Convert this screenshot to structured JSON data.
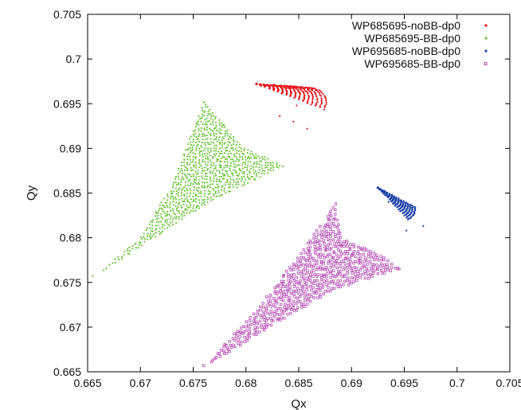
{
  "chart_data": {
    "type": "scatter",
    "title": "",
    "xlabel": "Qx",
    "ylabel": "Qy",
    "xlim": [
      0.665,
      0.705
    ],
    "ylim": [
      0.665,
      0.705
    ],
    "xticks": [
      "0.665",
      "0.67",
      "0.675",
      "0.68",
      "0.685",
      "0.69",
      "0.695",
      "0.7",
      "0.705"
    ],
    "yticks": [
      "0.665",
      "0.67",
      "0.675",
      "0.68",
      "0.685",
      "0.69",
      "0.695",
      "0.7",
      "0.705"
    ],
    "grid": false,
    "legend_position": "top-right",
    "series": [
      {
        "name": "WP685695-noBB-dp0",
        "color": "#e8141b",
        "marker": "dot",
        "footprint": {
          "tip": [
            0.681,
            0.6972
          ],
          "arc_center": [
            0.686,
            0.6952
          ],
          "arc_radius": 0.0029,
          "arc_from_deg": -30,
          "arc_to_deg": 90
        },
        "approx_points": [
          [
            0.681,
            0.6972
          ],
          [
            0.6848,
            0.6948
          ],
          [
            0.6858,
            0.6922
          ],
          [
            0.6832,
            0.6936
          ],
          [
            0.6845,
            0.693
          ]
        ]
      },
      {
        "name": "WP685695-BB-dp0",
        "color": "#6cc43a",
        "marker": "dot",
        "footprint": {
          "polygon": [
            [
              0.676,
              0.6952
            ],
            [
              0.6795,
              0.6905
            ],
            [
              0.6835,
              0.688
            ],
            [
              0.6765,
              0.684
            ],
            [
              0.6655,
              0.6755
            ],
            [
              0.67,
              0.68
            ],
            [
              0.673,
              0.686
            ]
          ]
        },
        "approx_points": [
          [
            0.676,
            0.6952
          ],
          [
            0.6835,
            0.688
          ],
          [
            0.6655,
            0.6757
          ],
          [
            0.671,
            0.68
          ],
          [
            0.678,
            0.687
          ]
        ]
      },
      {
        "name": "WP695685-noBB-dp0",
        "color": "#1c3fa8",
        "marker": "dot",
        "footprint": {
          "tip": [
            0.6925,
            0.6856
          ],
          "arc_center": [
            0.6947,
            0.6832
          ],
          "arc_radius": 0.0024,
          "arc_from_deg": -60,
          "arc_to_deg": 10
        },
        "approx_points": [
          [
            0.6925,
            0.6856
          ],
          [
            0.6968,
            0.6813
          ],
          [
            0.6952,
            0.6808
          ],
          [
            0.6935,
            0.684
          ]
        ]
      },
      {
        "name": "WP695685-BB-dp0",
        "color": "#b44db4",
        "marker": "box",
        "footprint": {
          "polygon": [
            [
              0.6885,
              0.6838
            ],
            [
              0.689,
              0.68
            ],
            [
              0.693,
              0.678
            ],
            [
              0.6945,
              0.6765
            ],
            [
              0.688,
              0.674
            ],
            [
              0.676,
              0.6655
            ],
            [
              0.681,
              0.672
            ],
            [
              0.685,
              0.678
            ]
          ]
        },
        "approx_points": [
          [
            0.6885,
            0.6838
          ],
          [
            0.6945,
            0.6765
          ],
          [
            0.676,
            0.6657
          ],
          [
            0.684,
            0.674
          ],
          [
            0.69,
            0.678
          ]
        ]
      }
    ]
  }
}
